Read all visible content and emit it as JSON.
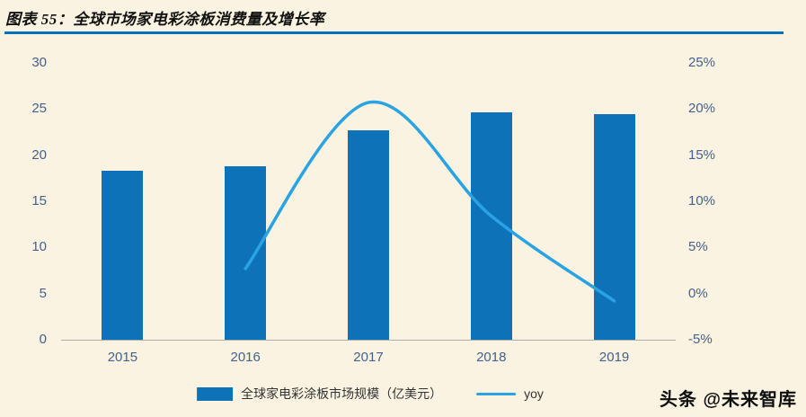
{
  "page": {
    "title": "图表 55：全球市场家电彩涂板消费量及增长率",
    "background": "#FAF3E1",
    "title_underline_color": "#0070C0",
    "watermark": "头条 @未来智库"
  },
  "legend": {
    "bar_label": "全球家电彩涂板市场规模（亿美元）",
    "line_label": "yoy"
  },
  "chart_data": {
    "type": "bar",
    "subtype": "bar+line combo",
    "categories": [
      "2015",
      "2016",
      "2017",
      "2018",
      "2019"
    ],
    "series": [
      {
        "name": "全球家电彩涂板市场规模（亿美元）",
        "type": "bar",
        "axis": "left",
        "color": "#0E72B8",
        "values": [
          18.3,
          18.8,
          22.7,
          24.6,
          24.4
        ]
      },
      {
        "name": "yoy",
        "type": "line",
        "axis": "right",
        "color": "#29A3E3",
        "values": [
          null,
          2.7,
          20.7,
          8.4,
          -0.8
        ]
      }
    ],
    "left_axis": {
      "min": 0,
      "max": 30,
      "ticks": [
        0,
        5,
        10,
        15,
        20,
        25,
        30
      ]
    },
    "right_axis": {
      "min": -5,
      "max": 25,
      "unit": "%",
      "tick_values": [
        25,
        20,
        15,
        10,
        5,
        0,
        -5
      ],
      "tick_labels": [
        "25%",
        "20%",
        "15%",
        "10%",
        "5%",
        "0%",
        "-5%"
      ]
    },
    "grid": false,
    "legend_position": "bottom",
    "title": "图表 55：全球市场家电彩涂板消费量及增长率"
  }
}
